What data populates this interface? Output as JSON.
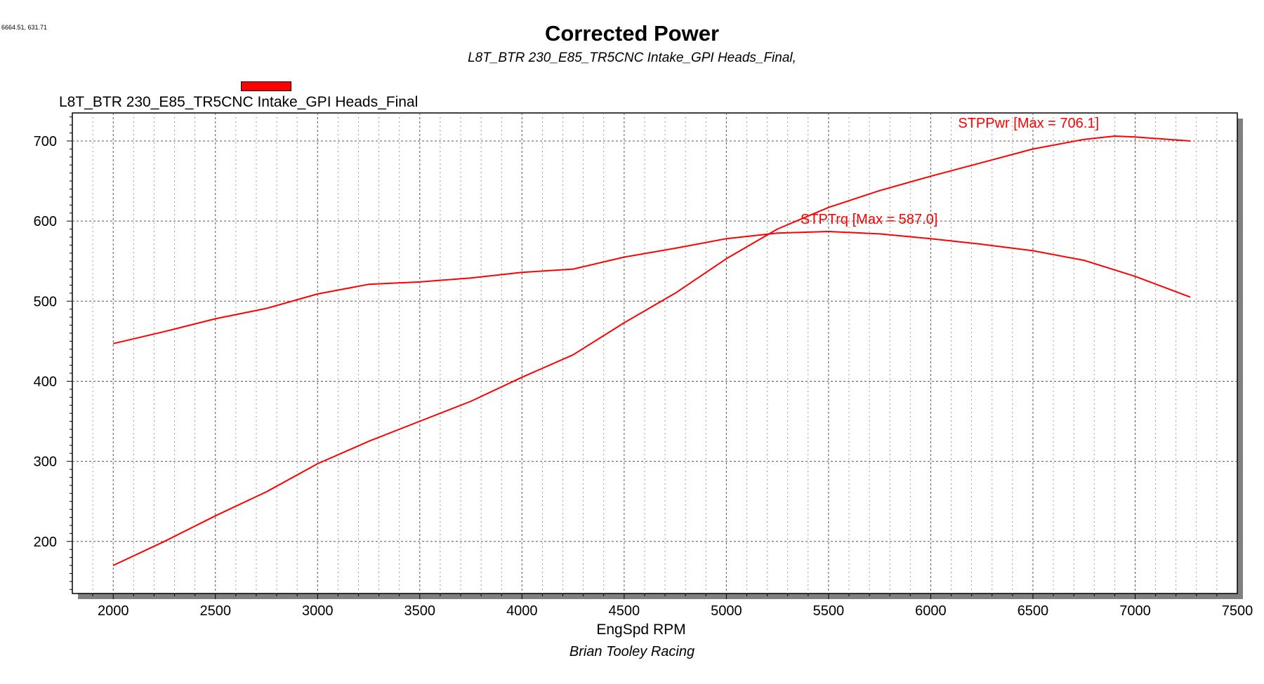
{
  "header": {
    "coordinate_readout": "6664.51, 631.71",
    "title": "Corrected Power",
    "subtitle": "L8T_BTR 230_E85_TR5CNC Intake_GPI Heads_Final,"
  },
  "legend": {
    "label": "L8T_BTR 230_E85_TR5CNC Intake_GPI Heads_Final",
    "color": "#ff0000"
  },
  "footer": {
    "credit": "Brian Tooley Racing"
  },
  "chart_data": {
    "type": "line",
    "title": "Corrected Power",
    "xlabel": "EngSpd RPM",
    "ylabel": "",
    "xlim": [
      1800,
      7500
    ],
    "ylim": [
      135,
      735
    ],
    "x_ticks": [
      2000,
      2500,
      3000,
      3500,
      4000,
      4500,
      5000,
      5500,
      6000,
      6500,
      7000,
      7500
    ],
    "y_ticks": [
      200,
      300,
      400,
      500,
      600,
      700
    ],
    "grid": true,
    "series": [
      {
        "name": "STPPwr",
        "annotation": "STPPwr [Max = 706.1]",
        "color": "#ff0000",
        "points": [
          [
            2000,
            170
          ],
          [
            2250,
            200
          ],
          [
            2500,
            232
          ],
          [
            2750,
            262
          ],
          [
            3000,
            297
          ],
          [
            3250,
            325
          ],
          [
            3500,
            350
          ],
          [
            3750,
            375
          ],
          [
            4000,
            405
          ],
          [
            4250,
            433
          ],
          [
            4500,
            473
          ],
          [
            4750,
            510
          ],
          [
            5000,
            553
          ],
          [
            5250,
            590
          ],
          [
            5500,
            617
          ],
          [
            5750,
            638
          ],
          [
            6000,
            656
          ],
          [
            6250,
            673
          ],
          [
            6500,
            690
          ],
          [
            6750,
            702
          ],
          [
            6900,
            706.1
          ],
          [
            7000,
            705
          ],
          [
            7270,
            700
          ]
        ]
      },
      {
        "name": "STPTrq",
        "annotation": "STPTrq [Max = 587.0]",
        "color": "#ff0000",
        "points": [
          [
            2000,
            447
          ],
          [
            2250,
            462
          ],
          [
            2500,
            478
          ],
          [
            2750,
            491
          ],
          [
            3000,
            509
          ],
          [
            3250,
            521
          ],
          [
            3500,
            524
          ],
          [
            3750,
            529
          ],
          [
            4000,
            536
          ],
          [
            4250,
            540
          ],
          [
            4500,
            555
          ],
          [
            4750,
            566
          ],
          [
            5000,
            578
          ],
          [
            5250,
            585
          ],
          [
            5500,
            587.0
          ],
          [
            5750,
            584
          ],
          [
            6000,
            578
          ],
          [
            6250,
            571
          ],
          [
            6500,
            563
          ],
          [
            6750,
            551
          ],
          [
            7000,
            531
          ],
          [
            7270,
            505
          ]
        ]
      }
    ]
  }
}
